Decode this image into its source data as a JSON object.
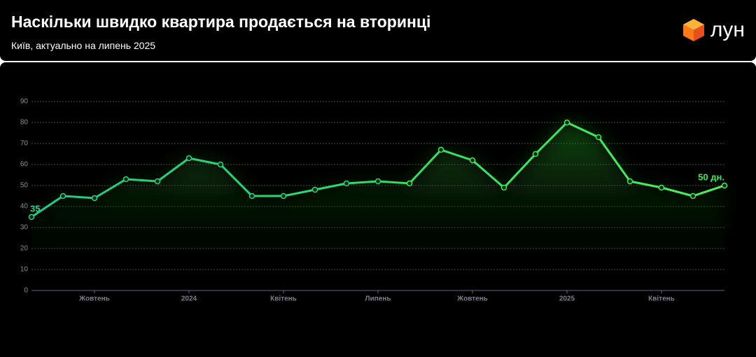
{
  "header": {
    "title": "Наскільки швидко квартира продається на вторинці",
    "subtitle": "Київ, актуально на липень 2025",
    "logo": "лун"
  },
  "chart_data": {
    "type": "line",
    "categories": [
      null,
      null,
      "Жовтень",
      null,
      null,
      "2024",
      null,
      null,
      "Квітень",
      null,
      null,
      "Липень",
      null,
      null,
      "Жовтень",
      null,
      null,
      "2025",
      null,
      null,
      "Квітень",
      null,
      null
    ],
    "series": [
      {
        "color": "#3ee85a",
        "values": [
          35,
          45,
          44,
          53,
          52,
          63,
          60,
          45,
          45,
          48,
          51,
          52,
          51,
          67,
          62,
          49,
          65,
          80,
          73,
          52,
          49,
          45,
          50
        ],
        "value_labels": [
          "35",
          null,
          null,
          null,
          null,
          null,
          null,
          null,
          null,
          null,
          null,
          null,
          null,
          null,
          null,
          null,
          null,
          null,
          null,
          null,
          null,
          null,
          "50 дн."
        ]
      }
    ],
    "ylim": [
      0,
      90
    ],
    "yticks": [
      0,
      10,
      20,
      30,
      40,
      50,
      60,
      70,
      80,
      90
    ],
    "grid": true
  }
}
